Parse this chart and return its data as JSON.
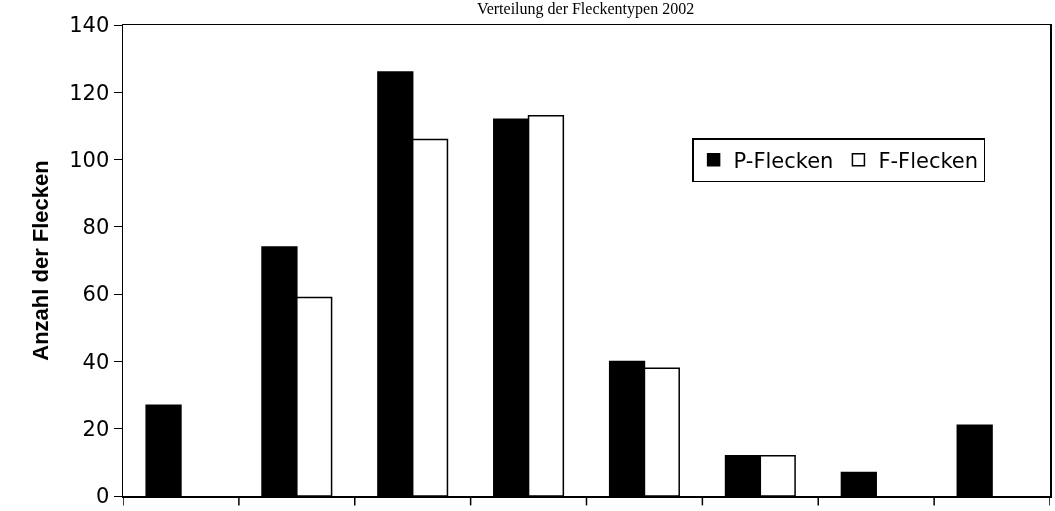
{
  "chart_data": {
    "type": "bar",
    "title": "Verteilung der Fleckentypen 2002",
    "ylabel": "Anzahl der Flecken",
    "categories": [
      null,
      null,
      null,
      null,
      null,
      null,
      null,
      null
    ],
    "series": [
      {
        "name": "P-Flecken",
        "color": "#000000",
        "values": [
          27,
          74,
          126,
          112,
          40,
          12,
          7,
          21
        ]
      },
      {
        "name": "F-Flecken",
        "color": "#ffffff",
        "values": [
          null,
          59,
          106,
          113,
          38,
          12,
          null,
          null
        ]
      }
    ],
    "ylim": [
      0,
      140
    ],
    "yticks": [
      0,
      20,
      40,
      60,
      80,
      100,
      120,
      140
    ],
    "legend": "top right"
  }
}
